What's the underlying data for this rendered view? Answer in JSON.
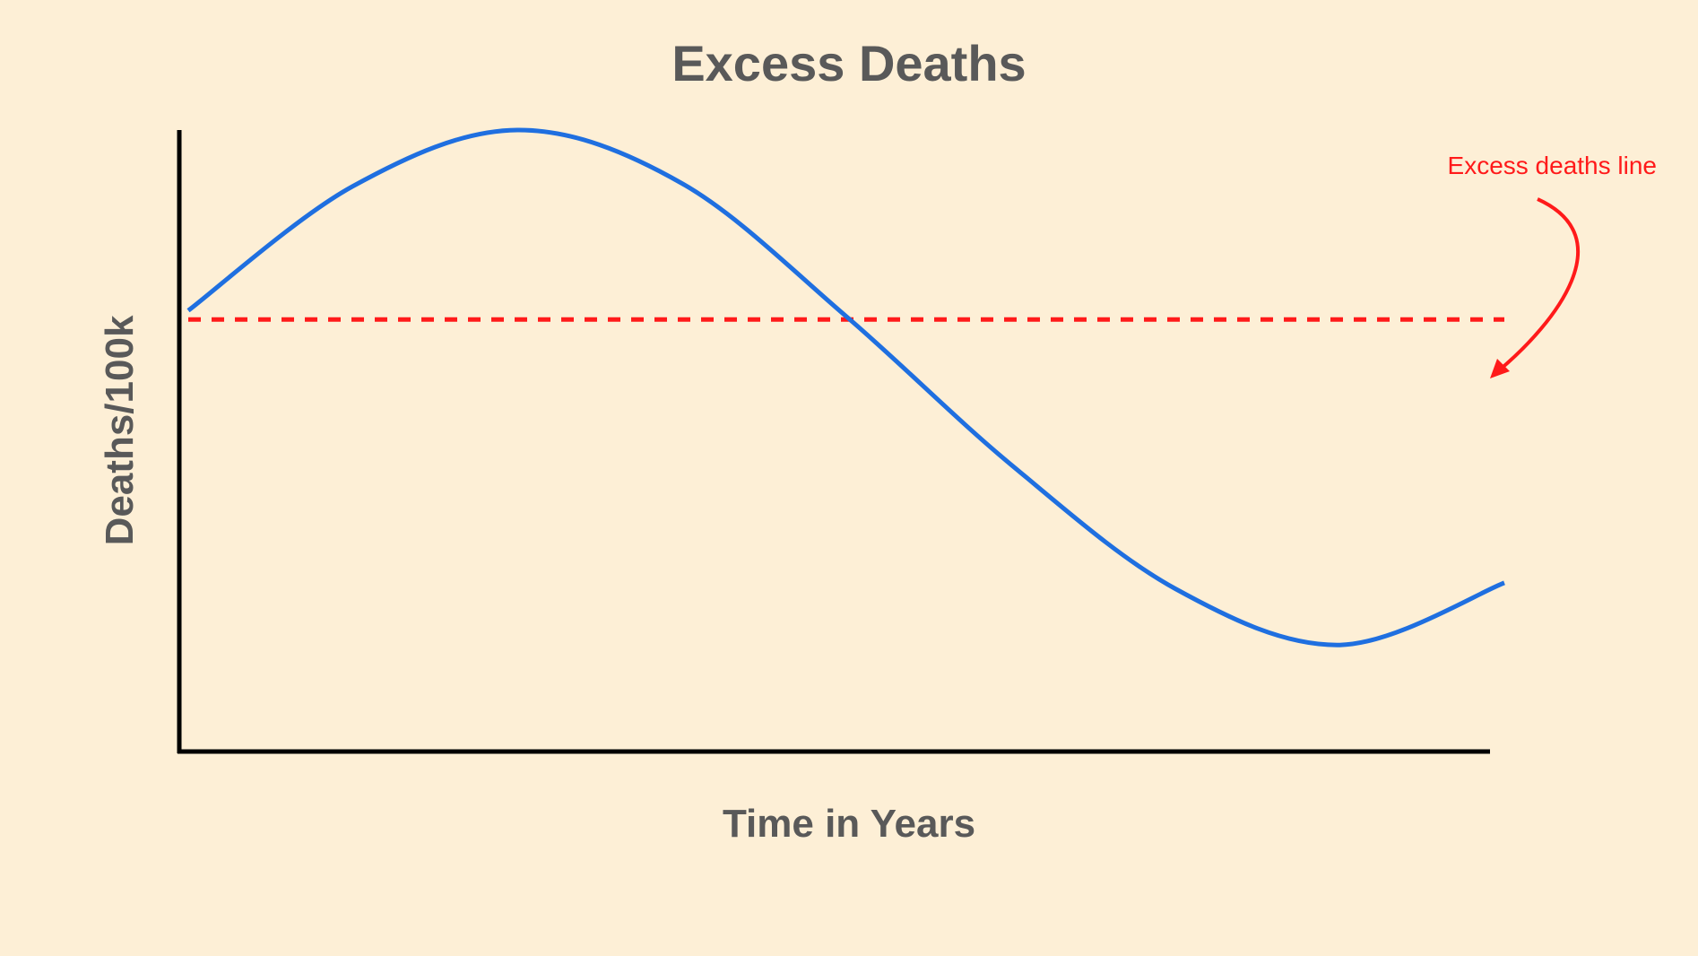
{
  "chart_data": {
    "type": "line",
    "title": "Excess Deaths",
    "xlabel": "Time in Years",
    "ylabel": "Deaths/100k",
    "series": [
      {
        "color": "#1f6fe0",
        "x": [
          0,
          0.125,
          0.25,
          0.375,
          0.5,
          0.625,
          0.75,
          0.875,
          1
        ],
        "y": [
          0.39,
          0.81,
          1.0,
          0.82,
          0.37,
          -0.13,
          -0.55,
          -0.74,
          -0.53
        ]
      }
    ],
    "reference_line": {
      "y": 0.36,
      "style": "dashed",
      "color": "#ff1a1a"
    },
    "annotation": {
      "text": "Excess deaths line",
      "color": "#ff1a1a"
    },
    "ticks": "none",
    "grid": false
  }
}
